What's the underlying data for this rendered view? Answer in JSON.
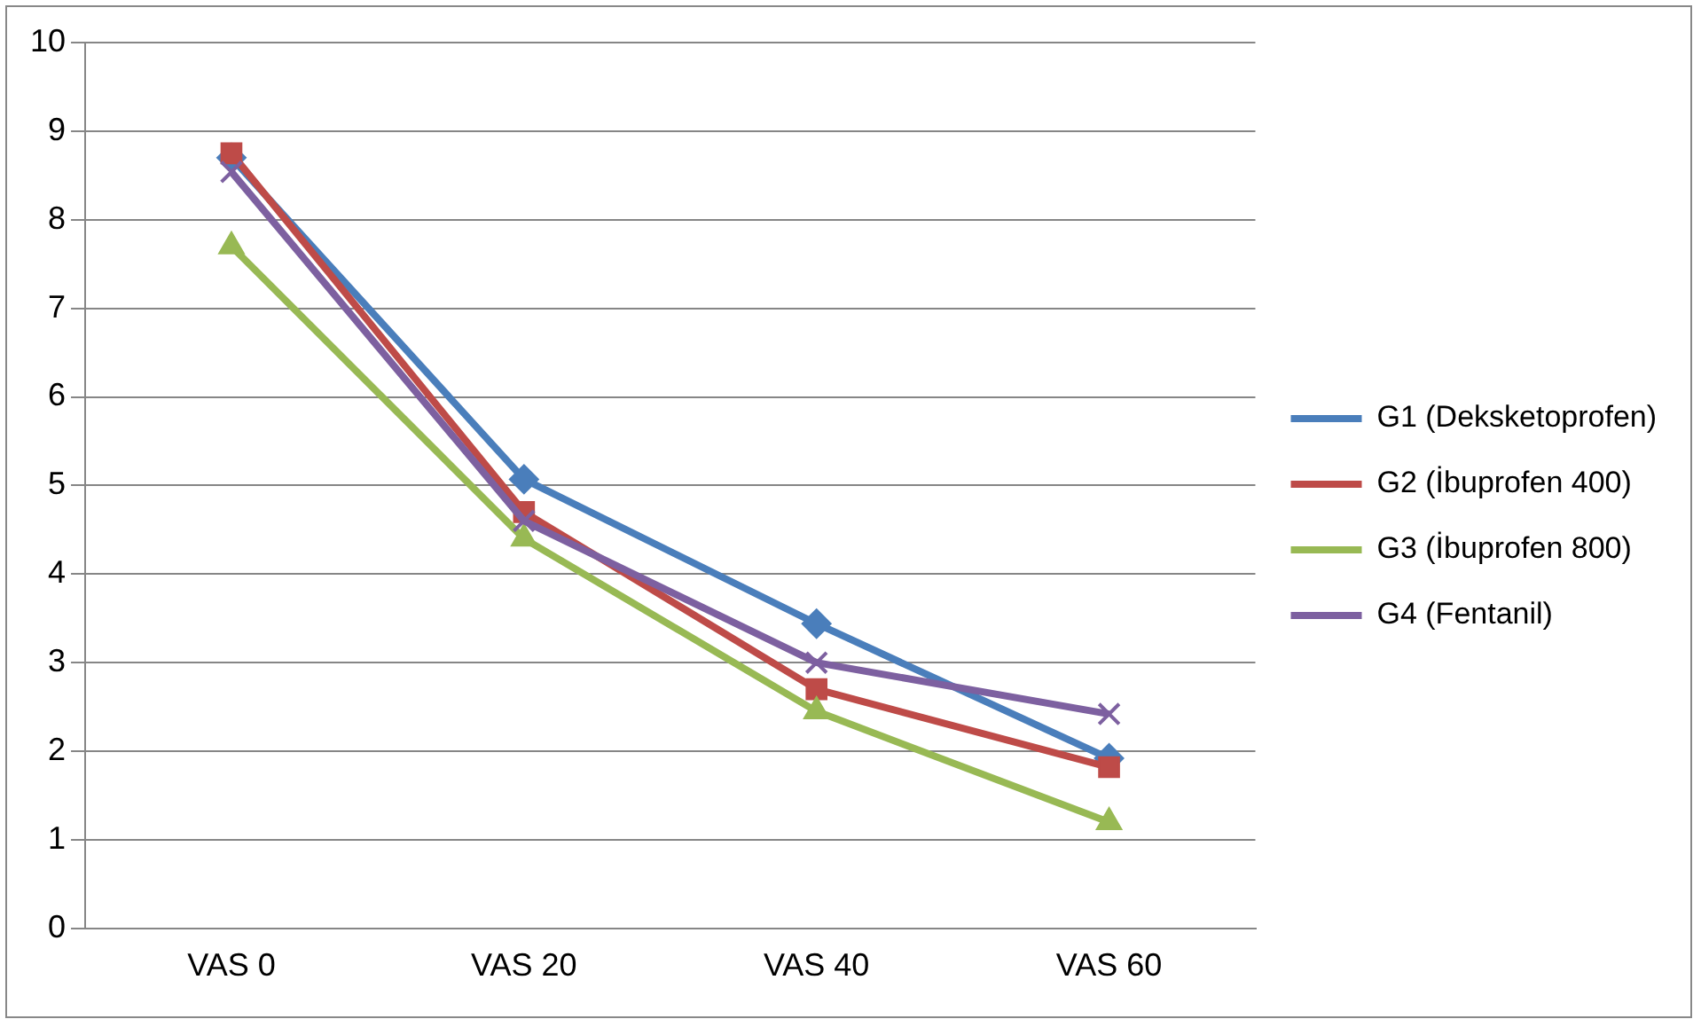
{
  "chart_data": {
    "type": "line",
    "categories": [
      "VAS 0",
      "VAS 20",
      "VAS 40",
      "VAS 60"
    ],
    "series": [
      {
        "name": "G1 (Deksketoprofen)",
        "color": "#4a7ebb",
        "marker": "diamond",
        "values": [
          8.7,
          5.07,
          3.44,
          1.92
        ]
      },
      {
        "name": "G2 (İbuprofen 400)",
        "color": "#be4b48",
        "marker": "square",
        "values": [
          8.75,
          4.7,
          2.7,
          1.82
        ]
      },
      {
        "name": "G3 (İbuprofen 800)",
        "color": "#98b954",
        "marker": "triangle",
        "values": [
          7.7,
          4.4,
          2.45,
          1.2
        ]
      },
      {
        "name": "G4 (Fentanil)",
        "color": "#7d60a0",
        "marker": "cross",
        "values": [
          8.54,
          4.6,
          3.0,
          2.42
        ]
      }
    ],
    "ylim": [
      0,
      10
    ],
    "yticks": [
      0,
      1,
      2,
      3,
      4,
      5,
      6,
      7,
      8,
      9,
      10
    ],
    "grid": "y",
    "legend": "right",
    "line_style": "solid"
  }
}
